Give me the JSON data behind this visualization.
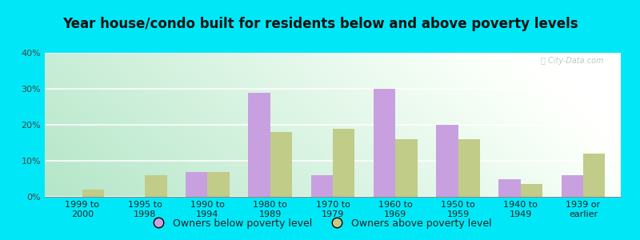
{
  "title": "Year house/condo built for residents below and above poverty levels",
  "categories": [
    "1999 to\n2000",
    "1995 to\n1998",
    "1990 to\n1994",
    "1980 to\n1989",
    "1970 to\n1979",
    "1960 to\n1969",
    "1950 to\n1959",
    "1940 to\n1949",
    "1939 or\nearlier"
  ],
  "below_poverty": [
    0,
    0,
    7,
    29,
    6,
    30,
    20,
    5,
    6
  ],
  "above_poverty": [
    2,
    6,
    7,
    18,
    19,
    16,
    16,
    3.5,
    12
  ],
  "below_color": "#c8a0e0",
  "above_color": "#c0cc88",
  "ylim": [
    0,
    40
  ],
  "yticks": [
    0,
    10,
    20,
    30,
    40
  ],
  "ytick_labels": [
    "0%",
    "10%",
    "20%",
    "30%",
    "40%"
  ],
  "outer_background": "#00e8f8",
  "bar_width": 0.35,
  "legend_below_label": "Owners below poverty level",
  "legend_above_label": "Owners above poverty level",
  "title_fontsize": 12,
  "tick_fontsize": 8,
  "legend_fontsize": 9
}
